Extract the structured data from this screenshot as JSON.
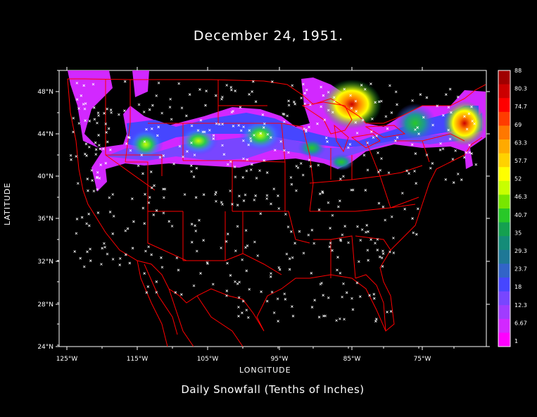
{
  "title": "December 24, 1951.",
  "subtitle": "Daily Snowfall (Tenths of Inches)",
  "map": {
    "x_label": "LONGITUDE",
    "y_label": "LATITUDE",
    "lon_ticks": [
      "125°W",
      "115°W",
      "105°W",
      "95°W",
      "85°W",
      "75°W"
    ],
    "lat_ticks": [
      "48°N",
      "44°N",
      "40°N",
      "36°N",
      "32°N",
      "28°N",
      "24°N"
    ],
    "boundary_color": "#ff0000",
    "station_marker_color": "#ffffff"
  },
  "colorbar": {
    "labels": [
      "88",
      "80.3",
      "74.7",
      "69",
      "63.3",
      "57.7",
      "52",
      "46.3",
      "40.7",
      "35",
      "29.3",
      "23.7",
      "18",
      "12.3",
      "6.67",
      "1"
    ],
    "colors": [
      "#a00000",
      "#cc0000",
      "#ff0000",
      "#ff3c00",
      "#ff7800",
      "#ffaa00",
      "#ffd200",
      "#ffff00",
      "#c8ff00",
      "#78e600",
      "#28c828",
      "#14a050",
      "#148c78",
      "#1e7896",
      "#3264c8",
      "#4646ff",
      "#7846ff",
      "#a03cff",
      "#d228ff",
      "#ff00ff"
    ]
  }
}
